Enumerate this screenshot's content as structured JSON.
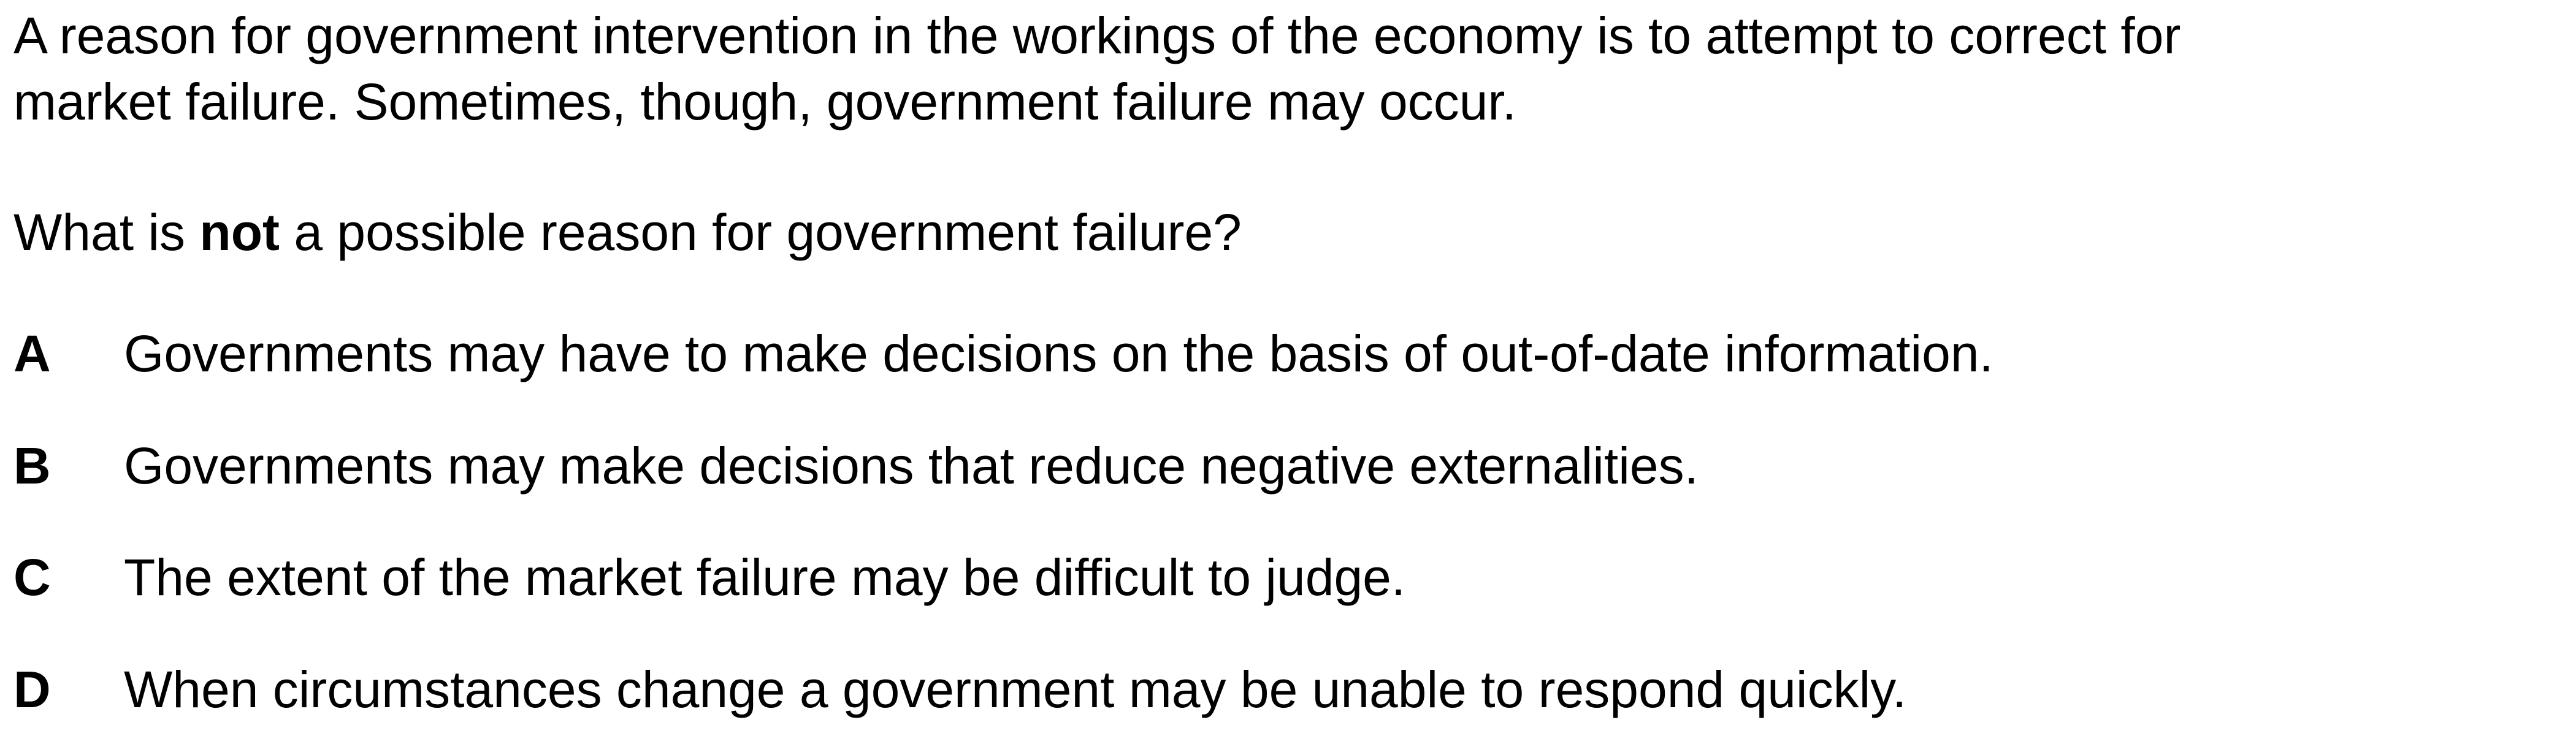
{
  "intro": {
    "line1": "A reason for government intervention in the workings of the economy is to attempt to correct for",
    "line2": "market failure. Sometimes, though, government failure may occur."
  },
  "question": {
    "before": "What is ",
    "emphasis": "not",
    "after": " a possible reason for government failure?"
  },
  "options": [
    {
      "letter": "A",
      "text": "Governments may have to make decisions on the basis of out-of-date information."
    },
    {
      "letter": "B",
      "text": "Governments may make decisions that reduce negative externalities."
    },
    {
      "letter": "C",
      "text": "The extent of the market failure may be difficult to judge."
    },
    {
      "letter": "D",
      "text": "When circumstances change a government may be unable to respond quickly."
    }
  ]
}
